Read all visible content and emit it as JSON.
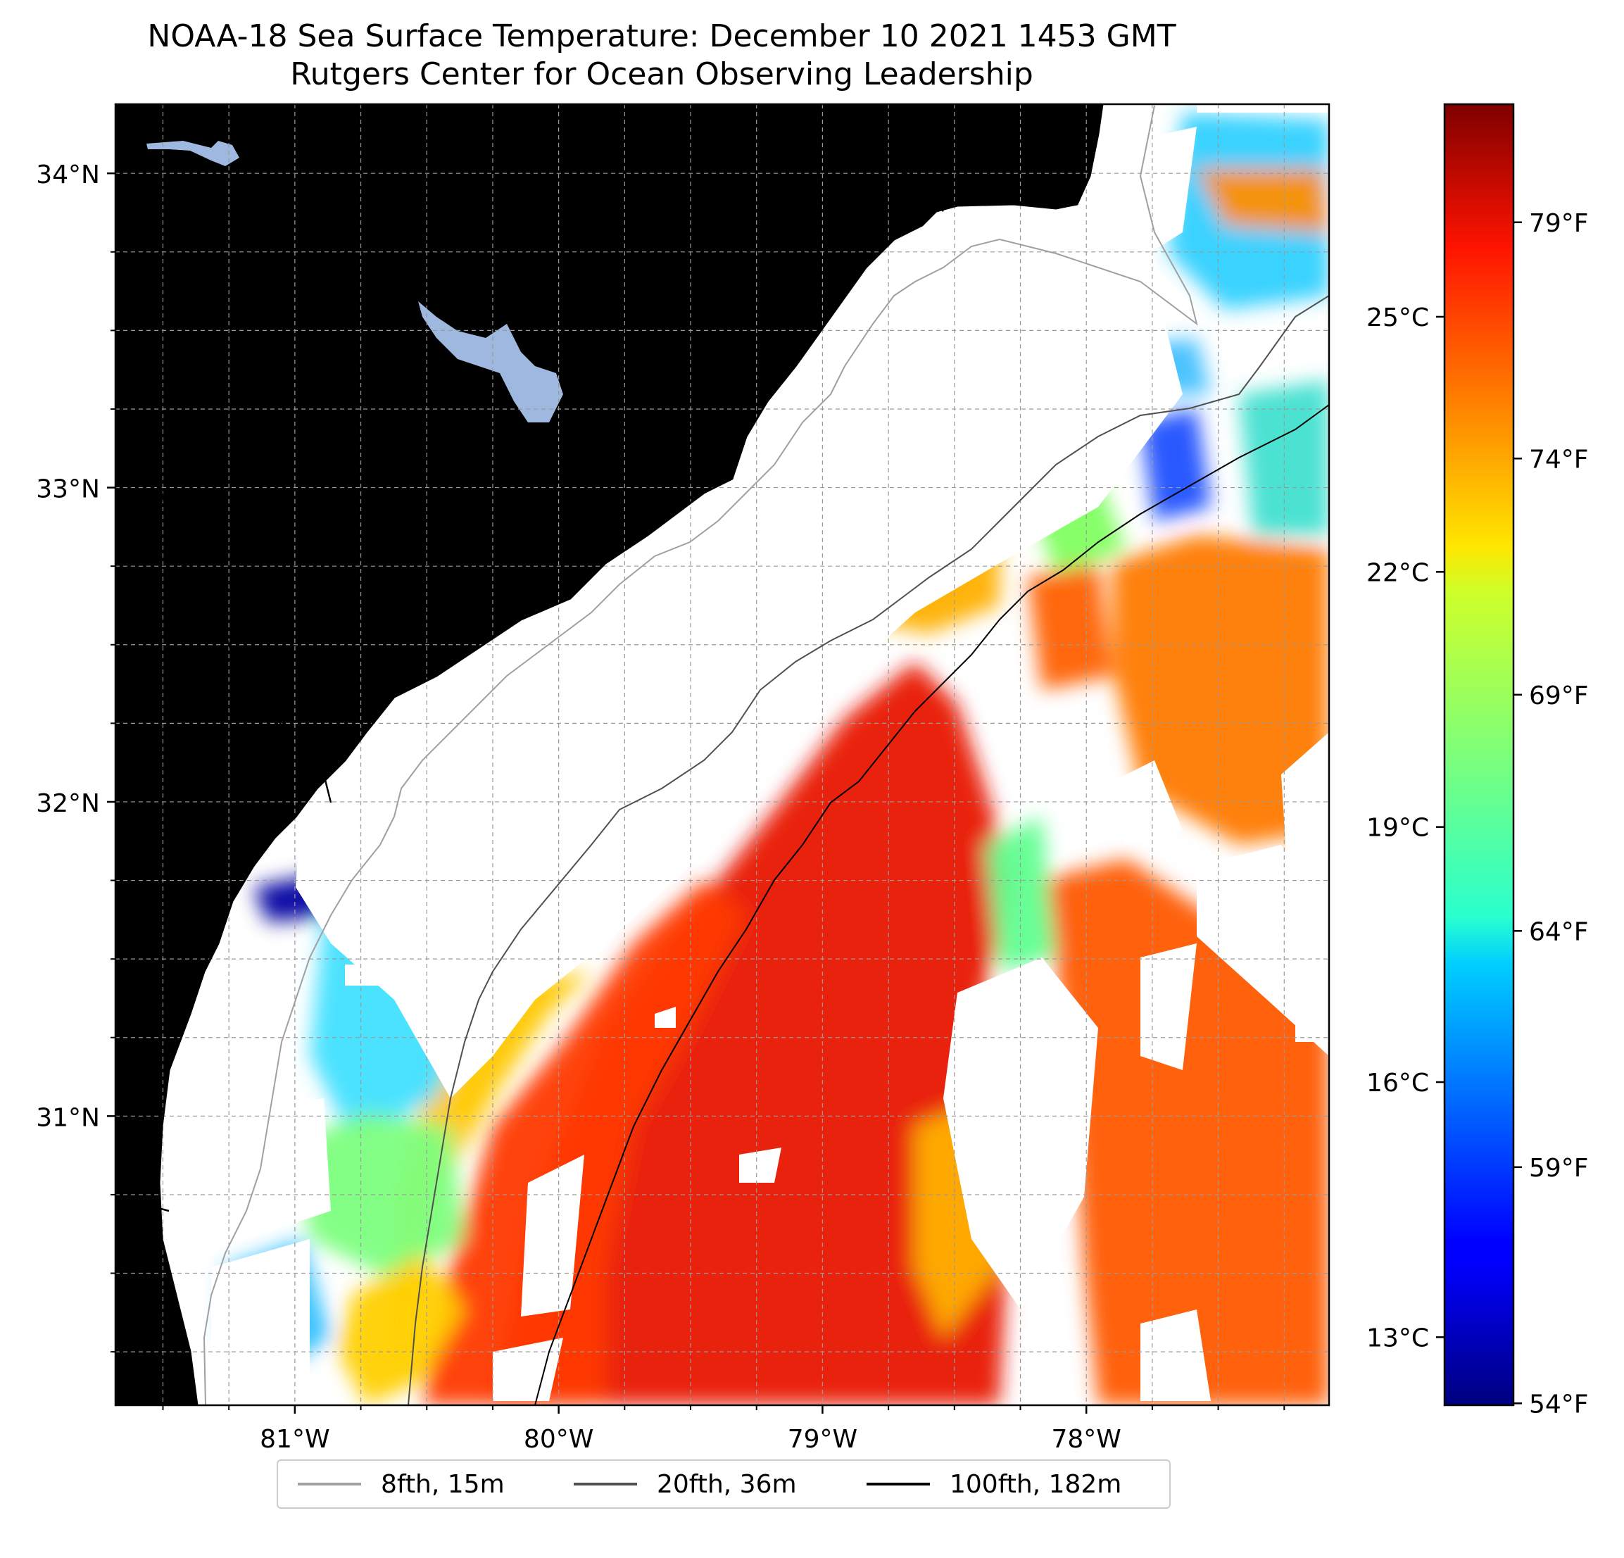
{
  "title": "NOAA-18 Sea Surface Temperature: December 10 2021 1453 GMT",
  "subtitle": "Rutgers Center for Ocean Observing Leadership",
  "map": {
    "lon_range": [
      -81.68,
      -77.08
    ],
    "lat_range": [
      30.08,
      34.22
    ],
    "lat_ticks": [
      {
        "value": 34,
        "label": "34°N"
      },
      {
        "value": 33,
        "label": "33°N"
      },
      {
        "value": 32,
        "label": "32°N"
      },
      {
        "value": 31,
        "label": "31°N"
      }
    ],
    "lon_ticks": [
      {
        "value": -81,
        "label": "81°W"
      },
      {
        "value": -80,
        "label": "80°W"
      },
      {
        "value": -79,
        "label": "79°W"
      },
      {
        "value": -78,
        "label": "78°W"
      }
    ],
    "land_color": "#d2b48c",
    "water_body_color": "#9fb8df",
    "grid": true
  },
  "colorbar": {
    "colormap": "jet",
    "range_c": [
      12.2,
      27.5
    ],
    "celsius_ticks": [
      {
        "value": 25,
        "label": "25°C"
      },
      {
        "value": 22,
        "label": "22°C"
      },
      {
        "value": 19,
        "label": "19°C"
      },
      {
        "value": 16,
        "label": "16°C"
      },
      {
        "value": 13,
        "label": "13°C"
      }
    ],
    "fahrenheit_ticks": [
      {
        "value": 79,
        "label": "79°F"
      },
      {
        "value": 74,
        "label": "74°F"
      },
      {
        "value": 69,
        "label": "69°F"
      },
      {
        "value": 64,
        "label": "64°F"
      },
      {
        "value": 59,
        "label": "59°F"
      },
      {
        "value": 54,
        "label": "54°F"
      }
    ]
  },
  "legend": {
    "items": [
      {
        "label": "8fth, 15m",
        "color": "#a0a0a0"
      },
      {
        "label": "20fth, 36m",
        "color": "#505050"
      },
      {
        "label": "100fth, 182m",
        "color": "#000000"
      }
    ]
  }
}
